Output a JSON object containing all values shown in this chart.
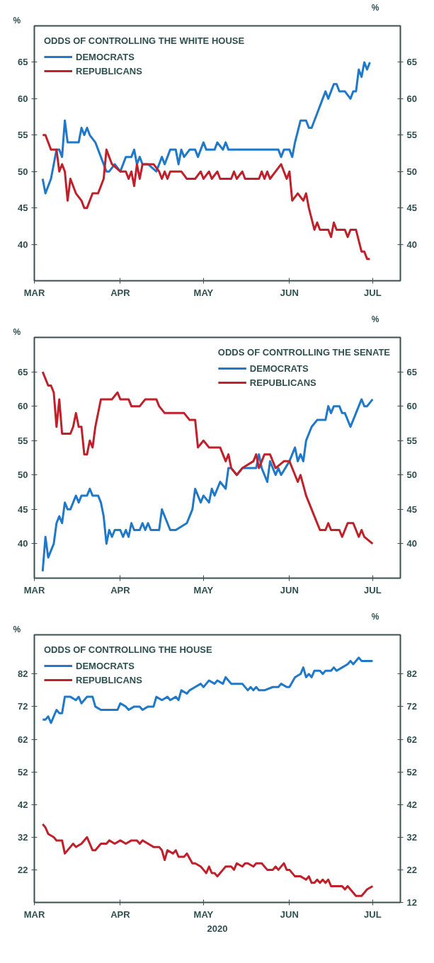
{
  "chart_data": [
    {
      "type": "line",
      "title": "ODDS OF CONTROLLING THE WHITE HOUSE",
      "ylabel": "%",
      "y2label": "%",
      "legend": "top left",
      "grid": false,
      "line_style": "solid",
      "xlim": [
        "2020-03-01",
        "2020-07-11"
      ],
      "xticks": [
        {
          "value": "2020-03-01",
          "label": "MAR"
        },
        {
          "value": "2020-04-01",
          "label": "APR"
        },
        {
          "value": "2020-05-01",
          "label": "MAY"
        },
        {
          "value": "2020-06-01",
          "label": "JUN"
        },
        {
          "value": "2020-07-01",
          "label": "JUL"
        }
      ],
      "ylim": [
        35,
        70
      ],
      "yticks": [
        40,
        45,
        50,
        55,
        60,
        65
      ],
      "y2lim": [
        35,
        70
      ],
      "y2ticks": [
        40,
        45,
        50,
        55,
        60,
        65
      ],
      "series": [
        {
          "name": "DEMOCRATS",
          "color": "#1f78c8",
          "x": [
            "2020-03-04",
            "2020-03-05",
            "2020-03-07",
            "2020-03-08",
            "2020-03-09",
            "2020-03-10",
            "2020-03-11",
            "2020-03-12",
            "2020-03-13",
            "2020-03-17",
            "2020-03-18",
            "2020-03-19",
            "2020-03-20",
            "2020-03-21",
            "2020-03-23",
            "2020-03-25",
            "2020-03-27",
            "2020-03-28",
            "2020-03-30",
            "2020-04-01",
            "2020-04-03",
            "2020-04-05",
            "2020-04-06",
            "2020-04-07",
            "2020-04-08",
            "2020-04-09",
            "2020-04-11",
            "2020-04-14",
            "2020-04-16",
            "2020-04-17",
            "2020-04-19",
            "2020-04-21",
            "2020-04-22",
            "2020-04-23",
            "2020-04-24",
            "2020-04-26",
            "2020-04-28",
            "2020-04-29",
            "2020-05-01",
            "2020-05-02",
            "2020-05-05",
            "2020-05-06",
            "2020-05-08",
            "2020-05-09",
            "2020-05-10",
            "2020-05-28",
            "2020-05-29",
            "2020-05-30",
            "2020-06-01",
            "2020-06-02",
            "2020-06-03",
            "2020-06-05",
            "2020-06-07",
            "2020-06-08",
            "2020-06-09",
            "2020-06-11",
            "2020-06-13",
            "2020-06-14",
            "2020-06-15",
            "2020-06-17",
            "2020-06-18",
            "2020-06-19",
            "2020-06-21",
            "2020-06-23",
            "2020-06-24",
            "2020-06-25",
            "2020-06-26",
            "2020-06-27",
            "2020-06-28",
            "2020-06-29",
            "2020-06-30"
          ],
          "values": [
            49,
            47,
            49,
            51,
            53,
            53,
            52,
            57,
            54,
            54,
            56,
            55,
            56,
            55,
            54,
            52,
            50,
            50,
            51,
            50,
            52,
            52,
            53,
            51,
            52,
            51,
            51,
            50,
            52,
            51,
            53,
            53,
            51,
            53,
            52,
            53,
            53,
            52,
            54,
            53,
            53,
            54,
            53,
            54,
            53,
            53,
            52,
            53,
            53,
            52,
            54,
            57,
            57,
            56,
            56,
            58,
            60,
            61,
            60,
            62,
            62,
            61,
            61,
            60,
            61,
            61,
            64,
            63,
            65,
            64,
            65
          ]
        },
        {
          "name": "REPUBLICANS",
          "color": "#c0202a",
          "x": [
            "2020-03-04",
            "2020-03-05",
            "2020-03-07",
            "2020-03-09",
            "2020-03-10",
            "2020-03-11",
            "2020-03-12",
            "2020-03-13",
            "2020-03-14",
            "2020-03-16",
            "2020-03-18",
            "2020-03-19",
            "2020-03-20",
            "2020-03-22",
            "2020-03-24",
            "2020-03-25",
            "2020-03-26",
            "2020-03-27",
            "2020-03-29",
            "2020-04-01",
            "2020-04-03",
            "2020-04-04",
            "2020-04-05",
            "2020-04-06",
            "2020-04-07",
            "2020-04-08",
            "2020-04-09",
            "2020-04-13",
            "2020-04-15",
            "2020-04-16",
            "2020-04-17",
            "2020-04-18",
            "2020-04-19",
            "2020-04-23",
            "2020-04-25",
            "2020-04-28",
            "2020-04-30",
            "2020-05-01",
            "2020-05-03",
            "2020-05-04",
            "2020-05-06",
            "2020-05-07",
            "2020-05-11",
            "2020-05-12",
            "2020-05-13",
            "2020-05-15",
            "2020-05-16",
            "2020-05-21",
            "2020-05-22",
            "2020-05-23",
            "2020-05-24",
            "2020-05-25",
            "2020-05-27",
            "2020-05-29",
            "2020-05-31",
            "2020-06-01",
            "2020-06-02",
            "2020-06-04",
            "2020-06-06",
            "2020-06-07",
            "2020-06-08",
            "2020-06-10",
            "2020-06-11",
            "2020-06-12",
            "2020-06-15",
            "2020-06-16",
            "2020-06-17",
            "2020-06-18",
            "2020-06-21",
            "2020-06-22",
            "2020-06-23",
            "2020-06-25",
            "2020-06-27",
            "2020-06-28",
            "2020-06-29",
            "2020-06-30"
          ],
          "values": [
            55,
            55,
            53,
            53,
            50,
            51,
            50,
            46,
            49,
            47,
            46,
            45,
            45,
            47,
            47,
            48,
            49,
            53,
            51,
            50,
            50,
            49,
            50,
            48,
            51,
            49,
            51,
            51,
            50,
            49,
            50,
            49,
            50,
            50,
            49,
            49,
            50,
            49,
            50,
            49,
            50,
            49,
            49,
            50,
            49,
            50,
            49,
            49,
            50,
            49,
            50,
            49,
            50,
            51,
            49,
            50,
            46,
            47,
            46,
            47,
            45,
            42,
            43,
            42,
            42,
            41,
            43,
            42,
            42,
            41,
            42,
            42,
            39,
            39,
            38,
            38
          ]
        }
      ]
    },
    {
      "type": "line",
      "title": "ODDS OF CONTROLLING THE SENATE",
      "ylabel": "%",
      "y2label": "%",
      "legend": "top right",
      "grid": false,
      "line_style": "solid",
      "xlim": [
        "2020-03-01",
        "2020-07-11"
      ],
      "xticks": [
        {
          "value": "2020-03-01",
          "label": "MAR"
        },
        {
          "value": "2020-04-01",
          "label": "APR"
        },
        {
          "value": "2020-05-01",
          "label": "MAY"
        },
        {
          "value": "2020-06-01",
          "label": "JUN"
        },
        {
          "value": "2020-07-01",
          "label": "JUL"
        }
      ],
      "ylim": [
        35,
        70
      ],
      "yticks": [
        40,
        45,
        50,
        55,
        60,
        65
      ],
      "y2lim": [
        35,
        70
      ],
      "y2ticks": [
        40,
        45,
        50,
        55,
        60,
        65
      ],
      "series": [
        {
          "name": "DEMOCRATS",
          "color": "#1f78c8",
          "x": [
            "2020-03-04",
            "2020-03-05",
            "2020-03-06",
            "2020-03-08",
            "2020-03-09",
            "2020-03-10",
            "2020-03-11",
            "2020-03-12",
            "2020-03-13",
            "2020-03-14",
            "2020-03-16",
            "2020-03-17",
            "2020-03-18",
            "2020-03-20",
            "2020-03-21",
            "2020-03-22",
            "2020-03-24",
            "2020-03-25",
            "2020-03-26",
            "2020-03-27",
            "2020-03-28",
            "2020-03-29",
            "2020-03-30",
            "2020-04-01",
            "2020-04-02",
            "2020-04-03",
            "2020-04-04",
            "2020-04-05",
            "2020-04-06",
            "2020-04-08",
            "2020-04-09",
            "2020-04-10",
            "2020-04-11",
            "2020-04-12",
            "2020-04-15",
            "2020-04-16",
            "2020-04-18",
            "2020-04-19",
            "2020-04-21",
            "2020-04-25",
            "2020-04-26",
            "2020-04-27",
            "2020-04-28",
            "2020-04-30",
            "2020-05-01",
            "2020-05-03",
            "2020-05-04",
            "2020-05-05",
            "2020-05-07",
            "2020-05-09",
            "2020-05-10",
            "2020-05-11",
            "2020-05-13",
            "2020-05-15",
            "2020-05-20",
            "2020-05-21",
            "2020-05-22",
            "2020-05-24",
            "2020-05-25",
            "2020-05-27",
            "2020-05-28",
            "2020-05-29",
            "2020-06-01",
            "2020-06-03",
            "2020-06-04",
            "2020-06-05",
            "2020-06-06",
            "2020-06-07",
            "2020-06-09",
            "2020-06-11",
            "2020-06-14",
            "2020-06-15",
            "2020-06-16",
            "2020-06-17",
            "2020-06-19",
            "2020-06-20",
            "2020-06-21",
            "2020-06-23",
            "2020-06-25",
            "2020-06-27",
            "2020-06-28",
            "2020-06-29",
            "2020-07-01"
          ],
          "values": [
            36,
            41,
            38,
            40,
            43,
            44,
            43,
            46,
            45,
            45,
            47,
            46,
            47,
            47,
            48,
            47,
            47,
            46,
            44,
            40,
            42,
            41,
            42,
            42,
            41,
            42,
            41,
            43,
            42,
            42,
            43,
            42,
            43,
            42,
            42,
            45,
            43,
            42,
            42,
            43,
            44,
            45,
            48,
            46,
            47,
            46,
            48,
            47,
            49,
            48,
            51,
            51,
            50,
            51,
            51,
            53,
            51,
            49,
            52,
            50,
            51,
            50,
            52,
            54,
            52,
            53,
            52,
            55,
            57,
            58,
            58,
            60,
            59,
            60,
            60,
            59,
            59,
            57,
            59,
            61,
            60,
            60,
            61
          ]
        },
        {
          "name": "REPUBLICANS",
          "color": "#c0202a",
          "x": [
            "2020-03-04",
            "2020-03-06",
            "2020-03-07",
            "2020-03-08",
            "2020-03-09",
            "2020-03-10",
            "2020-03-11",
            "2020-03-14",
            "2020-03-15",
            "2020-03-16",
            "2020-03-17",
            "2020-03-18",
            "2020-03-19",
            "2020-03-20",
            "2020-03-21",
            "2020-03-22",
            "2020-03-23",
            "2020-03-25",
            "2020-03-29",
            "2020-03-31",
            "2020-04-01",
            "2020-04-04",
            "2020-04-05",
            "2020-04-08",
            "2020-04-10",
            "2020-04-14",
            "2020-04-15",
            "2020-04-17",
            "2020-04-24",
            "2020-04-26",
            "2020-04-28",
            "2020-04-29",
            "2020-05-01",
            "2020-05-03",
            "2020-05-07",
            "2020-05-09",
            "2020-05-10",
            "2020-05-11",
            "2020-05-13",
            "2020-05-15",
            "2020-05-19",
            "2020-05-20",
            "2020-05-21",
            "2020-05-23",
            "2020-05-25",
            "2020-05-27",
            "2020-05-30",
            "2020-06-01",
            "2020-06-03",
            "2020-06-04",
            "2020-06-05",
            "2020-06-07",
            "2020-06-09",
            "2020-06-10",
            "2020-06-12",
            "2020-06-14",
            "2020-06-15",
            "2020-06-16",
            "2020-06-19",
            "2020-06-20",
            "2020-06-22",
            "2020-06-24",
            "2020-06-25",
            "2020-06-26",
            "2020-06-27",
            "2020-06-28",
            "2020-07-01"
          ],
          "values": [
            65,
            63,
            63,
            62,
            57,
            61,
            56,
            56,
            57,
            59,
            57,
            57,
            53,
            53,
            55,
            54,
            57,
            61,
            61,
            62,
            61,
            61,
            60,
            60,
            61,
            61,
            60,
            59,
            59,
            58,
            58,
            54,
            55,
            54,
            54,
            52,
            53,
            51,
            50,
            51,
            52,
            53,
            51,
            53,
            53,
            51,
            52,
            52,
            50,
            49,
            50,
            47,
            45,
            44,
            42,
            42,
            43,
            42,
            42,
            41,
            43,
            43,
            42,
            41,
            42,
            41,
            40
          ]
        }
      ]
    },
    {
      "type": "line",
      "title": "ODDS OF CONTROLLING THE HOUSE",
      "ylabel": "%",
      "y2label": "%",
      "xlabel": "2020",
      "legend": "top left",
      "grid": false,
      "line_style": "solid",
      "xlim": [
        "2020-03-01",
        "2020-07-11"
      ],
      "xticks": [
        {
          "value": "2020-03-01",
          "label": "MAR"
        },
        {
          "value": "2020-04-01",
          "label": "APR"
        },
        {
          "value": "2020-05-01",
          "label": "MAY"
        },
        {
          "value": "2020-06-01",
          "label": "JUN"
        },
        {
          "value": "2020-07-01",
          "label": "JUL"
        }
      ],
      "ylim": [
        12,
        94
      ],
      "yticks": [
        22,
        32,
        42,
        52,
        62,
        72,
        82
      ],
      "y2lim": [
        12,
        94
      ],
      "y2ticks": [
        12,
        22,
        32,
        42,
        52,
        62,
        72,
        82
      ],
      "series": [
        {
          "name": "DEMOCRATS",
          "color": "#1f78c8",
          "x": [
            "2020-03-04",
            "2020-03-05",
            "2020-03-06",
            "2020-03-07",
            "2020-03-09",
            "2020-03-10",
            "2020-03-11",
            "2020-03-12",
            "2020-03-14",
            "2020-03-16",
            "2020-03-17",
            "2020-03-18",
            "2020-03-20",
            "2020-03-22",
            "2020-03-23",
            "2020-03-25",
            "2020-03-31",
            "2020-04-01",
            "2020-04-03",
            "2020-04-04",
            "2020-04-06",
            "2020-04-08",
            "2020-04-09",
            "2020-04-11",
            "2020-04-13",
            "2020-04-14",
            "2020-04-16",
            "2020-04-18",
            "2020-04-19",
            "2020-04-21",
            "2020-04-22",
            "2020-04-23",
            "2020-04-25",
            "2020-04-26",
            "2020-04-28",
            "2020-04-30",
            "2020-05-01",
            "2020-05-02",
            "2020-05-03",
            "2020-05-05",
            "2020-05-06",
            "2020-05-08",
            "2020-05-09",
            "2020-05-11",
            "2020-05-15",
            "2020-05-17",
            "2020-05-18",
            "2020-05-19",
            "2020-05-20",
            "2020-05-21",
            "2020-05-23",
            "2020-05-26",
            "2020-05-28",
            "2020-05-29",
            "2020-05-31",
            "2020-06-01",
            "2020-06-03",
            "2020-06-05",
            "2020-06-06",
            "2020-06-07",
            "2020-06-08",
            "2020-06-09",
            "2020-06-10",
            "2020-06-12",
            "2020-06-13",
            "2020-06-14",
            "2020-06-16",
            "2020-06-17",
            "2020-06-18",
            "2020-06-20",
            "2020-06-22",
            "2020-06-23",
            "2020-06-24",
            "2020-06-26",
            "2020-06-27",
            "2020-07-01"
          ],
          "values": [
            68,
            68,
            69,
            67,
            71,
            70,
            70,
            75,
            75,
            74,
            75,
            73,
            75,
            75,
            72,
            71,
            71,
            73,
            72,
            71,
            72,
            72,
            71,
            72,
            72,
            75,
            74,
            75,
            74,
            75,
            74,
            77,
            76,
            77,
            78,
            79,
            78,
            79,
            80,
            79,
            80,
            79,
            81,
            79,
            79,
            77,
            78,
            77,
            78,
            77,
            77,
            78,
            78,
            79,
            78,
            78,
            81,
            82,
            84,
            81,
            82,
            81,
            83,
            83,
            82,
            83,
            83,
            84,
            83,
            84,
            85,
            86,
            85,
            87,
            86,
            86
          ]
        },
        {
          "name": "REPUBLICANS",
          "color": "#c0202a",
          "x": [
            "2020-03-04",
            "2020-03-05",
            "2020-03-06",
            "2020-03-08",
            "2020-03-09",
            "2020-03-11",
            "2020-03-12",
            "2020-03-14",
            "2020-03-15",
            "2020-03-16",
            "2020-03-18",
            "2020-03-20",
            "2020-03-22",
            "2020-03-23",
            "2020-03-25",
            "2020-03-27",
            "2020-03-28",
            "2020-03-30",
            "2020-04-01",
            "2020-04-03",
            "2020-04-05",
            "2020-04-07",
            "2020-04-08",
            "2020-04-09",
            "2020-04-11",
            "2020-04-13",
            "2020-04-15",
            "2020-04-16",
            "2020-04-17",
            "2020-04-18",
            "2020-04-20",
            "2020-04-21",
            "2020-04-22",
            "2020-04-24",
            "2020-04-25",
            "2020-04-27",
            "2020-04-28",
            "2020-04-30",
            "2020-05-01",
            "2020-05-02",
            "2020-05-03",
            "2020-05-04",
            "2020-05-05",
            "2020-05-06",
            "2020-05-07",
            "2020-05-08",
            "2020-05-09",
            "2020-05-11",
            "2020-05-12",
            "2020-05-13",
            "2020-05-15",
            "2020-05-16",
            "2020-05-17",
            "2020-05-19",
            "2020-05-20",
            "2020-05-22",
            "2020-05-24",
            "2020-05-26",
            "2020-05-27",
            "2020-05-28",
            "2020-05-30",
            "2020-05-31",
            "2020-06-01",
            "2020-06-03",
            "2020-06-05",
            "2020-06-07",
            "2020-06-08",
            "2020-06-09",
            "2020-06-10",
            "2020-06-11",
            "2020-06-12",
            "2020-06-13",
            "2020-06-14",
            "2020-06-15",
            "2020-06-16",
            "2020-06-18",
            "2020-06-20",
            "2020-06-21",
            "2020-06-22",
            "2020-06-24",
            "2020-06-25",
            "2020-06-27",
            "2020-06-28",
            "2020-06-29",
            "2020-07-01"
          ],
          "values": [
            36,
            35,
            33,
            32,
            31,
            31,
            27,
            29,
            30,
            29,
            30,
            32,
            28,
            28,
            30,
            30,
            31,
            30,
            31,
            30,
            31,
            31,
            30,
            31,
            30,
            29,
            29,
            28,
            25,
            28,
            27,
            28,
            26,
            26,
            27,
            24,
            24,
            23,
            22,
            21,
            23,
            21,
            21,
            20,
            21,
            22,
            23,
            23,
            22,
            24,
            23,
            24,
            24,
            23,
            24,
            24,
            22,
            22,
            23,
            22,
            24,
            22,
            22,
            20,
            20,
            19,
            20,
            18,
            18,
            19,
            18,
            19,
            18,
            19,
            17,
            17,
            17,
            16,
            17,
            15,
            14,
            14,
            15,
            16,
            17
          ]
        }
      ]
    }
  ]
}
